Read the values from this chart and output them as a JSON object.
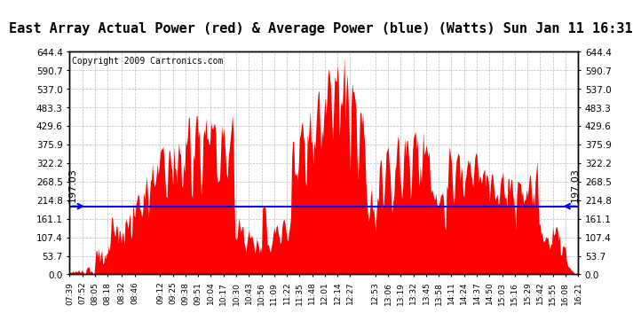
{
  "title": "East Array Actual Power (red) & Average Power (blue) (Watts) Sun Jan 11 16:31",
  "average_power": 197.03,
  "y_ticks": [
    0.0,
    53.7,
    107.4,
    161.1,
    214.8,
    268.5,
    322.2,
    375.9,
    429.6,
    483.3,
    537.0,
    590.7,
    644.4
  ],
  "ylim": [
    0.0,
    644.4
  ],
  "x_labels": [
    "07:39",
    "07:52",
    "08:05",
    "08:18",
    "08:32",
    "08:46",
    "09:12",
    "09:25",
    "09:38",
    "09:51",
    "10:04",
    "10:17",
    "10:30",
    "10:43",
    "10:56",
    "11:09",
    "11:22",
    "11:35",
    "11:48",
    "12:01",
    "12:14",
    "12:27",
    "12:53",
    "13:06",
    "13:19",
    "13:32",
    "13:45",
    "13:58",
    "14:11",
    "14:24",
    "14:37",
    "14:50",
    "15:03",
    "15:16",
    "15:29",
    "15:42",
    "15:55",
    "16:08",
    "16:21"
  ],
  "copyright_text": "Copyright 2009 Cartronics.com",
  "area_color": "red",
  "line_color": "blue",
  "background_color": "white",
  "grid_color": "#aaaaaa",
  "title_fontsize": 11,
  "avg_label_fontsize": 8,
  "tick_fontsize": 7.5,
  "xtick_fontsize": 6.5,
  "copyright_fontsize": 7
}
